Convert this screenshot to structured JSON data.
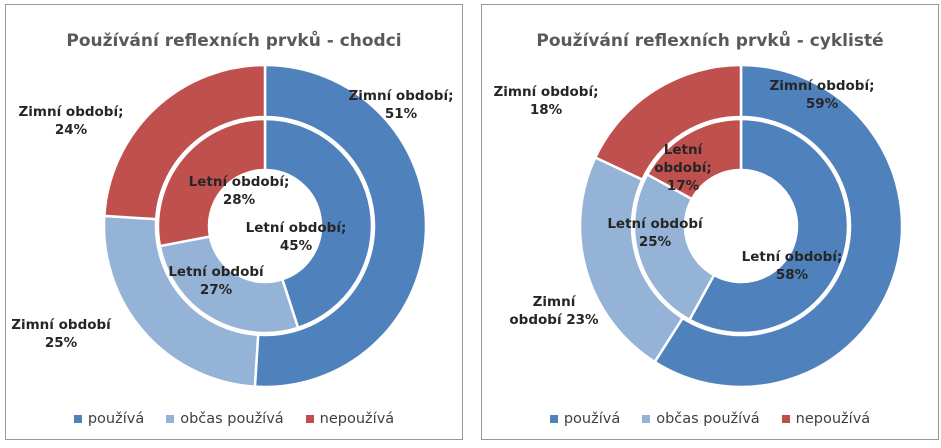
{
  "legend": [
    "používá",
    "občas používá",
    "nepoužívá"
  ],
  "colors": [
    "#4F81BD",
    "#95B3D7",
    "#C0504D"
  ],
  "chart_data": [
    {
      "type": "pie",
      "subtype": "doughnut",
      "title": "Používání reflexních prvků - chodci",
      "categories": [
        "používá",
        "občas používá",
        "nepoužívá"
      ],
      "series": [
        {
          "name": "Zimní období",
          "values": [
            51,
            25,
            24
          ],
          "labels": [
            "Zimní období;\n51%",
            "Zimní období\n25%",
            "Zimní období;\n24%"
          ]
        },
        {
          "name": "Letní období",
          "values": [
            45,
            27,
            28
          ],
          "labels": [
            "Letní období;\n45%",
            "Letní období\n27%",
            "Letní období;\n28%"
          ]
        }
      ]
    },
    {
      "type": "pie",
      "subtype": "doughnut",
      "title": "Používání reflexních prvků - cyklisté",
      "categories": [
        "používá",
        "občas používá",
        "nepoužívá"
      ],
      "series": [
        {
          "name": "Zimní období",
          "values": [
            59,
            23,
            18
          ],
          "labels": [
            "Zimní období;\n59%",
            "Zimní\nobdobí 23%",
            "Zimní období;\n18%"
          ]
        },
        {
          "name": "Letní období",
          "values": [
            58,
            25,
            17
          ],
          "labels": [
            "Letní období;\n58%",
            "Letní období\n25%",
            "Letní\nobdobí;\n17%"
          ]
        }
      ]
    }
  ]
}
